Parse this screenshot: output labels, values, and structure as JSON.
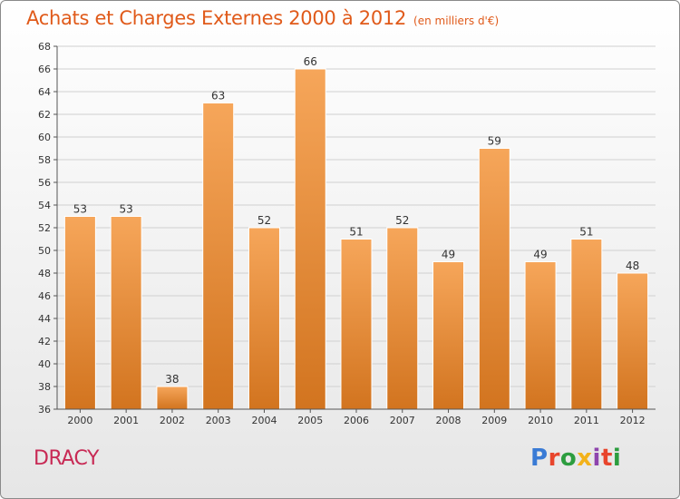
{
  "title": "Achats et Charges Externes 2000 à 2012",
  "subtitle": "(en milliers d'€)",
  "commune": "DRACY",
  "logo": {
    "text": "Proxiti",
    "colors": [
      "#3a7bd5",
      "#e8452c",
      "#2c9d3f",
      "#f3b21a",
      "#8e44ad",
      "#e8452c",
      "#2c9d3f"
    ]
  },
  "colors": {
    "title": "#e05a1a",
    "bar_top": "#f6a65a",
    "bar_bottom": "#d2741f",
    "grid": "#d0d0d0",
    "commune": "#c82a55"
  },
  "chart_data": {
    "type": "bar",
    "title": "Achats et Charges Externes 2000 à 2012",
    "subtitle": "(en milliers d'€)",
    "xlabel": "",
    "ylabel": "",
    "categories": [
      "2000",
      "2001",
      "2002",
      "2003",
      "2004",
      "2005",
      "2006",
      "2007",
      "2008",
      "2009",
      "2010",
      "2011",
      "2012"
    ],
    "values": [
      53,
      53,
      38,
      63,
      52,
      66,
      51,
      52,
      49,
      59,
      49,
      51,
      48
    ],
    "ylim": [
      36,
      68
    ],
    "yticks": [
      36,
      38,
      40,
      42,
      44,
      46,
      48,
      50,
      52,
      54,
      56,
      58,
      60,
      62,
      64,
      66,
      68
    ],
    "grid": true,
    "data_labels": true
  }
}
